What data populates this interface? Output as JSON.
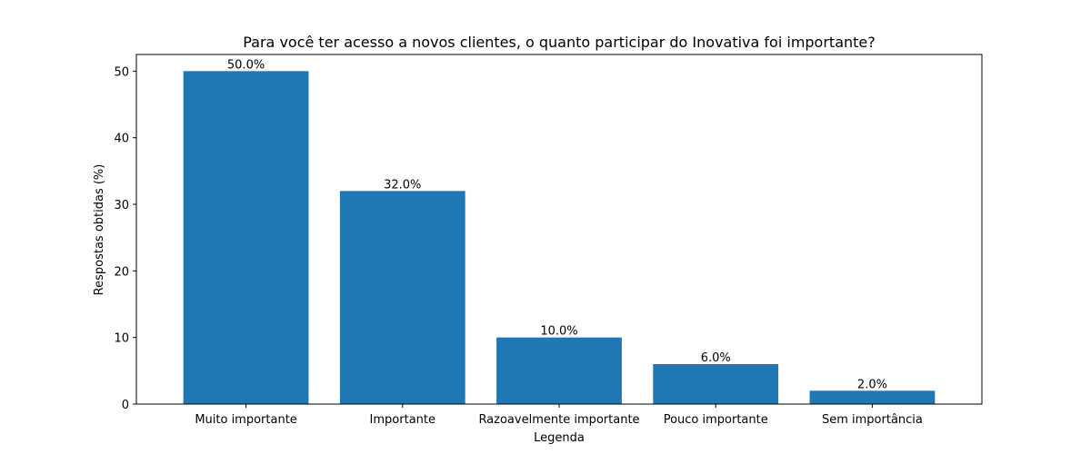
{
  "chart_data": {
    "type": "bar",
    "title": "Para você ter acesso a novos clientes, o quanto participar do Inovativa foi importante?",
    "xlabel": "Legenda",
    "ylabel": "Respostas obtidas (%)",
    "categories": [
      "Muito importante",
      "Importante",
      "Razoavelmente importante",
      "Pouco importante",
      "Sem importância"
    ],
    "values": [
      50.0,
      32.0,
      10.0,
      6.0,
      2.0
    ],
    "data_labels": [
      "50.0%",
      "32.0%",
      "10.0%",
      "6.0%",
      "2.0%"
    ],
    "ylim": [
      0,
      52.5
    ],
    "yticks": [
      0,
      10,
      20,
      30,
      40,
      50
    ],
    "grid": false,
    "bar_color": "#1f77b4"
  }
}
